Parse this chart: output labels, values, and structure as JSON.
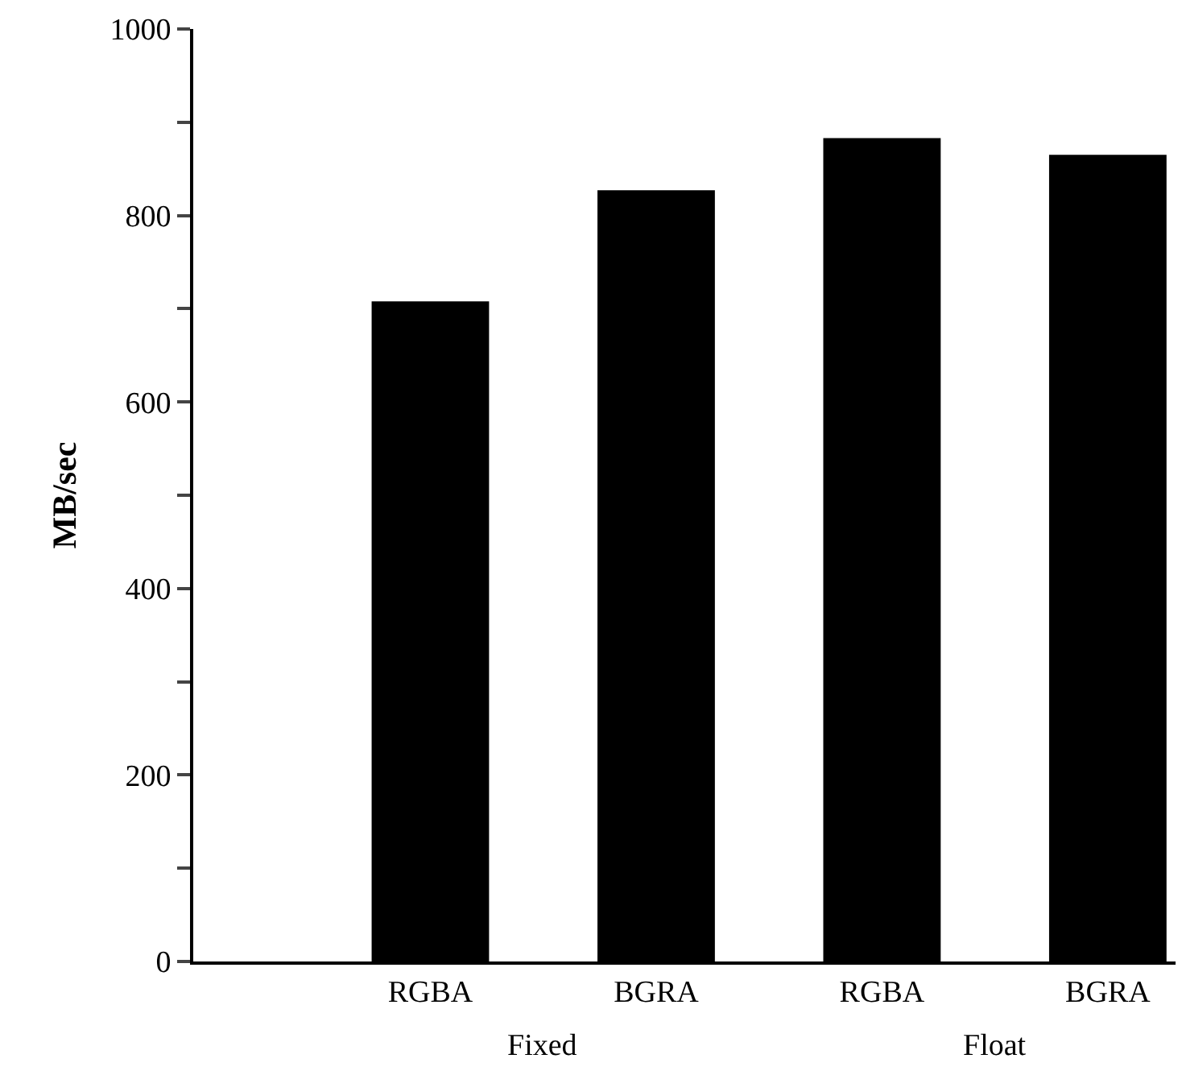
{
  "chart_data": {
    "type": "bar",
    "ylabel": "MB/sec",
    "categories": [
      null,
      "RGBA",
      "BGRA",
      "RGBA",
      "BGRA"
    ],
    "values": [
      null,
      708,
      827,
      883,
      865
    ],
    "color": "#000000",
    "ylim": [
      0,
      1000
    ],
    "yticks": [
      0,
      {
        "value": 100,
        "label": null
      },
      200,
      {
        "value": 300,
        "label": null
      },
      400,
      {
        "value": 500,
        "label": null
      },
      600,
      {
        "value": 700,
        "label": null
      },
      800,
      {
        "value": 900,
        "label": null
      },
      1000
    ],
    "annotations": [
      "Fixed",
      "Float"
    ]
  }
}
